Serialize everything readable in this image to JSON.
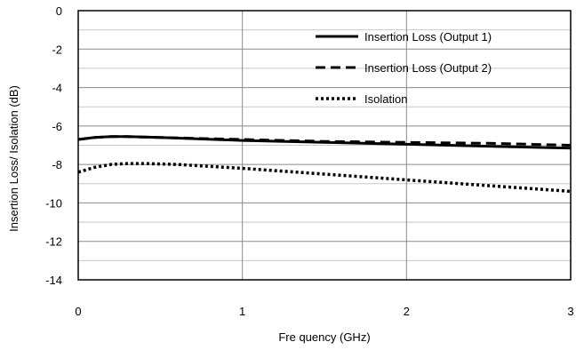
{
  "chart_data": {
    "type": "line",
    "xlabel": "Fre quency (GHz)",
    "ylabel": "Insertion Loss/ Isolation (dB)",
    "xlim": [
      0,
      3
    ],
    "ylim": [
      0,
      14
    ],
    "y_inverted": true,
    "x_ticks": [
      "0",
      "1",
      "2",
      "3"
    ],
    "y_ticks": [
      "0",
      "-2",
      "-4",
      "-6",
      "-8",
      "-10",
      "-12",
      "-14"
    ],
    "grid": true,
    "legend_position": "top-right",
    "series": [
      {
        "name": "Insertion Loss (Output 1)",
        "style": "solid",
        "x": [
          0,
          0.1,
          0.2,
          0.3,
          0.5,
          1.0,
          1.5,
          2.0,
          2.5,
          3.0
        ],
        "y": [
          6.7,
          6.6,
          6.55,
          6.55,
          6.6,
          6.75,
          6.85,
          6.95,
          7.05,
          7.15
        ]
      },
      {
        "name": "Insertion Loss (Output 2)",
        "style": "dashed",
        "x": [
          0,
          0.1,
          0.2,
          0.3,
          0.5,
          1.0,
          1.5,
          2.0,
          2.5,
          3.0
        ],
        "y": [
          6.7,
          6.6,
          6.55,
          6.55,
          6.6,
          6.7,
          6.8,
          6.85,
          6.9,
          7.0
        ]
      },
      {
        "name": "Isolation",
        "style": "dotted",
        "x": [
          0,
          0.1,
          0.2,
          0.3,
          0.4,
          0.6,
          1.0,
          1.5,
          2.0,
          2.5,
          3.0
        ],
        "y": [
          8.4,
          8.15,
          8.0,
          7.95,
          7.95,
          8.0,
          8.2,
          8.5,
          8.8,
          9.1,
          9.4
        ]
      }
    ]
  },
  "colors": {
    "series": "#000000",
    "grid_major": "#8a8a8a",
    "grid_minor": "#c8c8c8"
  }
}
